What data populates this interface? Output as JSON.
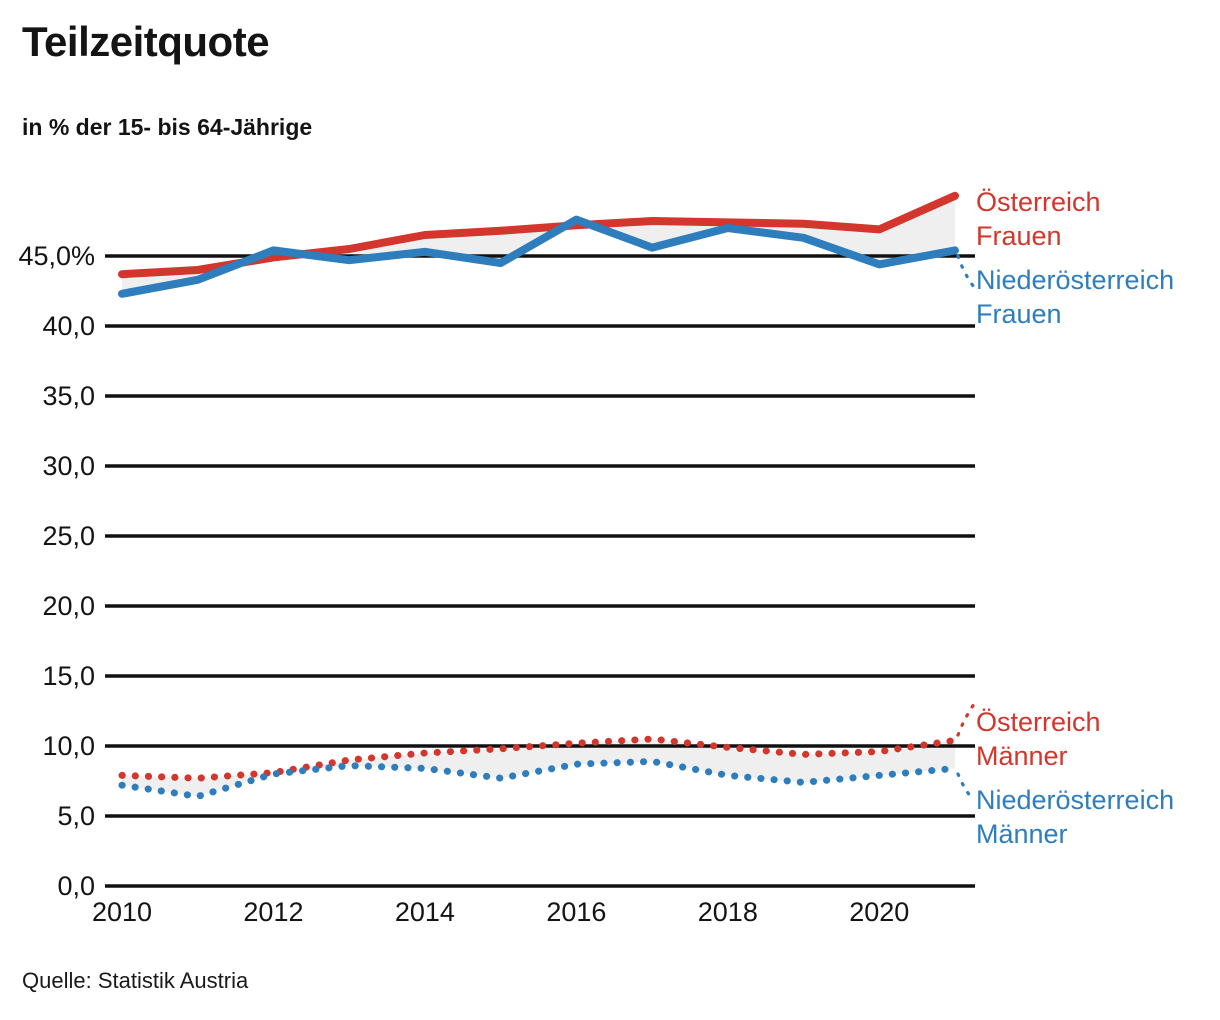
{
  "header": {
    "title": "Teilzeitquote",
    "subtitle": "in % der 15- bis 64-Jährige"
  },
  "footer": {
    "source": "Quelle: Statistik Austria"
  },
  "legend": {
    "frauen_at": "Österreich\nFrauen",
    "frauen_noe": "Niederösterreich\nFrauen",
    "maenner_at": "Österreich\nMänner",
    "maenner_noe": "Niederösterreich\nMänner"
  },
  "colors": {
    "red": "#d3362d",
    "blue": "#2e7dbc",
    "grid": "#111111",
    "band": "#efefef",
    "text": "#141414"
  },
  "chart_data": {
    "type": "line",
    "title": "Teilzeitquote",
    "xlabel": "",
    "ylabel": "in % der 15- bis 64-Jährige",
    "grid": true,
    "legend_position": "right",
    "ylim": [
      0,
      50
    ],
    "x": [
      2010,
      2011,
      2012,
      2013,
      2014,
      2015,
      2016,
      2017,
      2018,
      2019,
      2020,
      2021
    ],
    "series": [
      {
        "name": "Österreich Frauen",
        "slug": "oesterreich-frauen",
        "color_key": "red",
        "style": "solid",
        "values": [
          43.7,
          44.0,
          44.9,
          45.5,
          46.5,
          46.8,
          47.2,
          47.5,
          47.4,
          47.3,
          46.9,
          49.3
        ]
      },
      {
        "name": "Niederösterreich Frauen",
        "slug": "niederoesterreich-frauen",
        "color_key": "blue",
        "style": "solid",
        "values": [
          42.3,
          43.3,
          45.4,
          44.7,
          45.3,
          44.5,
          47.6,
          45.6,
          47.0,
          46.3,
          44.4,
          45.4
        ]
      },
      {
        "name": "Österreich Männer",
        "slug": "oesterreich-maenner",
        "color_key": "red",
        "style": "dotted",
        "values": [
          7.9,
          7.7,
          8.1,
          9.0,
          9.5,
          9.8,
          10.2,
          10.5,
          9.9,
          9.4,
          9.6,
          10.4
        ]
      },
      {
        "name": "Niederösterreich Männer",
        "slug": "niederoesterreich-maenner",
        "color_key": "blue",
        "style": "dotted",
        "values": [
          7.2,
          6.4,
          8.0,
          8.6,
          8.4,
          7.7,
          8.7,
          8.9,
          7.9,
          7.4,
          7.9,
          8.4
        ]
      }
    ],
    "bands": [
      [
        0,
        1
      ],
      [
        2,
        3
      ]
    ],
    "y_ticks": [
      {
        "value": 45,
        "label": "45,0%"
      },
      {
        "value": 40,
        "label": "40,0"
      },
      {
        "value": 35,
        "label": "35,0"
      },
      {
        "value": 30,
        "label": "30,0"
      },
      {
        "value": 25,
        "label": "25,0"
      },
      {
        "value": 20,
        "label": "20,0"
      },
      {
        "value": 15,
        "label": "15,0"
      },
      {
        "value": 10,
        "label": "10,0"
      },
      {
        "value": 5,
        "label": "5,0"
      },
      {
        "value": 0,
        "label": "0,0"
      }
    ],
    "x_ticks": [
      {
        "value": 2010,
        "label": "2010"
      },
      {
        "value": 2012,
        "label": "2012"
      },
      {
        "value": 2014,
        "label": "2014"
      },
      {
        "value": 2016,
        "label": "2016"
      },
      {
        "value": 2018,
        "label": "2018"
      },
      {
        "value": 2020,
        "label": "2020"
      }
    ]
  }
}
